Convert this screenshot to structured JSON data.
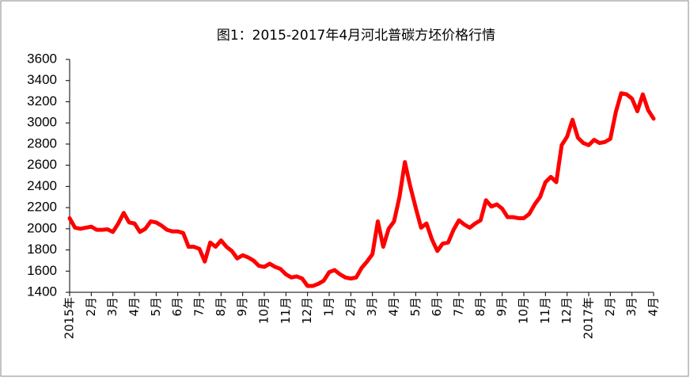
{
  "chart_data": {
    "type": "line",
    "title": "图1：2015-2017年4月河北普碳方坯价格行情",
    "categories": [
      "2015年",
      null,
      null,
      null,
      "2月",
      null,
      null,
      null,
      "3月",
      null,
      null,
      null,
      "4月",
      null,
      null,
      null,
      "5月",
      null,
      null,
      null,
      "6月",
      null,
      null,
      null,
      "7月",
      null,
      null,
      null,
      "8月",
      null,
      null,
      null,
      "9月",
      null,
      null,
      null,
      "10月",
      null,
      null,
      null,
      "11月",
      null,
      null,
      null,
      "12月",
      null,
      null,
      null,
      "1月",
      null,
      null,
      null,
      "2月",
      null,
      null,
      null,
      "3月",
      null,
      null,
      null,
      "4月",
      null,
      null,
      null,
      "5月",
      null,
      null,
      null,
      "6月",
      null,
      null,
      null,
      "7月",
      null,
      null,
      null,
      "8月",
      null,
      null,
      null,
      "9月",
      null,
      null,
      null,
      "10月",
      null,
      null,
      null,
      "11月",
      null,
      null,
      null,
      "12月",
      null,
      null,
      null,
      "2017年",
      null,
      null,
      null,
      "2月",
      null,
      null,
      null,
      "3月",
      null,
      null,
      null,
      "4月"
    ],
    "series": [
      {
        "name": "价格",
        "color": "#ff0000",
        "values": [
          2100,
          2010,
          2000,
          2010,
          2020,
          1990,
          1990,
          1995,
          1970,
          2050,
          2150,
          2060,
          2050,
          1970,
          2000,
          2070,
          2060,
          2030,
          1990,
          1975,
          1975,
          1960,
          1830,
          1830,
          1810,
          1690,
          1870,
          1830,
          1890,
          1830,
          1790,
          1720,
          1750,
          1730,
          1700,
          1650,
          1640,
          1670,
          1640,
          1620,
          1570,
          1540,
          1550,
          1530,
          1460,
          1460,
          1480,
          1510,
          1590,
          1610,
          1570,
          1540,
          1530,
          1540,
          1630,
          1690,
          1760,
          2070,
          1830,
          2000,
          2070,
          2300,
          2630,
          2400,
          2200,
          2010,
          2050,
          1900,
          1790,
          1860,
          1870,
          1990,
          2080,
          2040,
          2010,
          2050,
          2080,
          2270,
          2210,
          2230,
          2190,
          2110,
          2110,
          2100,
          2100,
          2140,
          2230,
          2300,
          2440,
          2490,
          2440,
          2790,
          2870,
          3030,
          2860,
          2810,
          2790,
          2840,
          2810,
          2820,
          2850,
          3100,
          3280,
          3270,
          3230,
          3110,
          3270,
          3120,
          3040
        ]
      }
    ],
    "ylim": [
      1400,
      3600
    ],
    "yticks": [
      1400,
      1600,
      1800,
      2000,
      2200,
      2400,
      2600,
      2800,
      3000,
      3200,
      3400,
      3600
    ]
  }
}
